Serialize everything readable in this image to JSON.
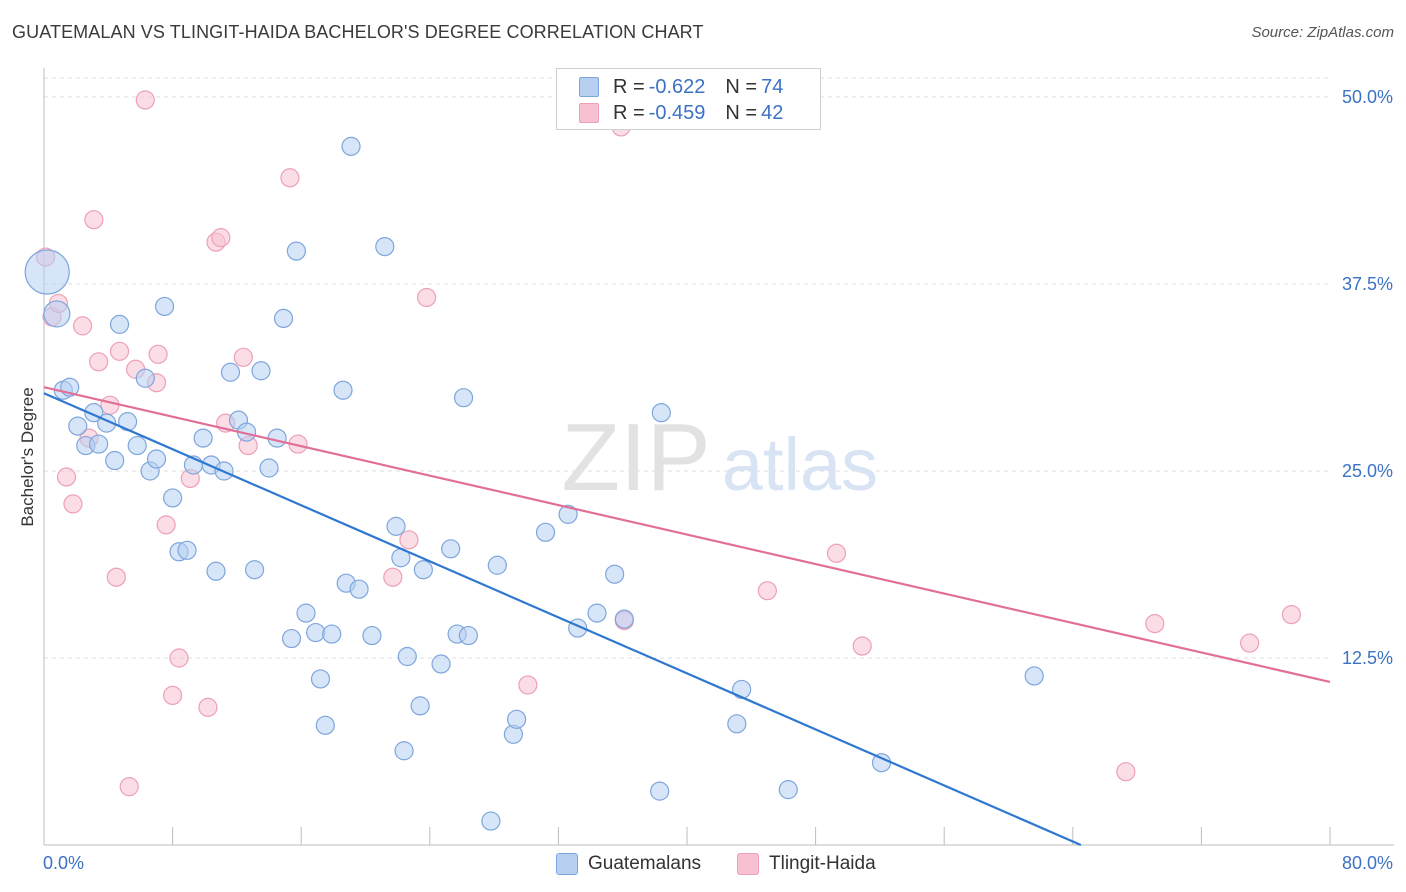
{
  "header": {
    "title": "GUATEMALAN VS TLINGIT-HAIDA BACHELOR'S DEGREE CORRELATION CHART",
    "source": "Source: ZipAtlas.com"
  },
  "watermark": {
    "zip": "ZIP",
    "atlas": "atlas"
  },
  "legend": {
    "guatemalans": {
      "r_label": "R = ",
      "r_value": "-0.622",
      "n_label": "N = ",
      "n_value": "74"
    },
    "tlingit": {
      "r_label": "R = ",
      "r_value": "-0.459",
      "n_label": "N = ",
      "n_value": "42"
    }
  },
  "bottom_legend": {
    "guatemalans": "Guatemalans",
    "tlingit": "Tlingit-Haida"
  },
  "colors": {
    "blue_fill": "#b7d0f2",
    "blue_stroke": "#7ea6dc",
    "blue_line": "#2f78d0",
    "pink_fill": "#f7c1d1",
    "pink_stroke": "#eda0b8",
    "pink_line": "#e07098",
    "tick_label": "#3b72c4"
  },
  "chart_data": {
    "type": "scatter",
    "title": "GUATEMALAN VS TLINGIT-HAIDA BACHELOR'S DEGREE CORRELATION CHART",
    "xlabel": "",
    "ylabel": "Bachelor's Degree",
    "xlim": [
      0,
      80
    ],
    "ylim": [
      0,
      50
    ],
    "x_tick_labels": [
      {
        "value": 0,
        "label": "0.0%"
      },
      {
        "value": 80,
        "label": "80.0%"
      }
    ],
    "y_tick_labels": [
      {
        "value": 12.5,
        "label": "12.5%"
      },
      {
        "value": 25,
        "label": "25.0%"
      },
      {
        "value": 37.5,
        "label": "37.5%"
      },
      {
        "value": 50,
        "label": "50.0%"
      }
    ],
    "grid": true,
    "legend_position": "top-center",
    "series": [
      {
        "name": "Guatemalans",
        "r": -0.622,
        "n": 74,
        "trend": {
          "x": [
            0,
            64.5
          ],
          "y": [
            30.2,
            0
          ]
        },
        "points": [
          {
            "x": 0.2,
            "y": 38.3,
            "size": "large"
          },
          {
            "x": 0.8,
            "y": 35.5,
            "size": "medium"
          },
          {
            "x": 1.2,
            "y": 30.4
          },
          {
            "x": 1.6,
            "y": 30.6
          },
          {
            "x": 2.1,
            "y": 28.0
          },
          {
            "x": 2.6,
            "y": 26.7
          },
          {
            "x": 3.1,
            "y": 28.9
          },
          {
            "x": 3.4,
            "y": 26.8
          },
          {
            "x": 3.9,
            "y": 28.2
          },
          {
            "x": 4.4,
            "y": 25.7
          },
          {
            "x": 4.7,
            "y": 34.8
          },
          {
            "x": 5.2,
            "y": 28.3
          },
          {
            "x": 5.8,
            "y": 26.7
          },
          {
            "x": 6.3,
            "y": 31.2
          },
          {
            "x": 6.6,
            "y": 25.0
          },
          {
            "x": 7.0,
            "y": 25.8
          },
          {
            "x": 7.5,
            "y": 36.0
          },
          {
            "x": 8.0,
            "y": 23.2
          },
          {
            "x": 8.4,
            "y": 19.6
          },
          {
            "x": 8.9,
            "y": 19.7
          },
          {
            "x": 9.3,
            "y": 25.4
          },
          {
            "x": 9.9,
            "y": 27.2
          },
          {
            "x": 10.4,
            "y": 25.4
          },
          {
            "x": 10.7,
            "y": 18.3
          },
          {
            "x": 11.2,
            "y": 25.0
          },
          {
            "x": 11.6,
            "y": 31.6
          },
          {
            "x": 12.1,
            "y": 28.4
          },
          {
            "x": 12.6,
            "y": 27.6
          },
          {
            "x": 13.1,
            "y": 18.4
          },
          {
            "x": 13.5,
            "y": 31.7
          },
          {
            "x": 14.0,
            "y": 25.2
          },
          {
            "x": 14.5,
            "y": 27.2
          },
          {
            "x": 14.9,
            "y": 35.2
          },
          {
            "x": 15.4,
            "y": 13.8
          },
          {
            "x": 15.7,
            "y": 39.7
          },
          {
            "x": 16.3,
            "y": 15.5
          },
          {
            "x": 16.9,
            "y": 14.2
          },
          {
            "x": 17.2,
            "y": 11.1
          },
          {
            "x": 17.5,
            "y": 8.0
          },
          {
            "x": 17.9,
            "y": 14.1
          },
          {
            "x": 18.6,
            "y": 30.4
          },
          {
            "x": 18.8,
            "y": 17.5
          },
          {
            "x": 19.1,
            "y": 46.7
          },
          {
            "x": 19.6,
            "y": 17.1
          },
          {
            "x": 20.4,
            "y": 14.0
          },
          {
            "x": 21.2,
            "y": 40.0
          },
          {
            "x": 21.9,
            "y": 21.3
          },
          {
            "x": 22.2,
            "y": 19.2
          },
          {
            "x": 22.4,
            "y": 6.3
          },
          {
            "x": 22.6,
            "y": 12.6
          },
          {
            "x": 23.4,
            "y": 9.3
          },
          {
            "x": 23.6,
            "y": 18.4
          },
          {
            "x": 24.7,
            "y": 12.1
          },
          {
            "x": 25.3,
            "y": 19.8
          },
          {
            "x": 25.7,
            "y": 14.1
          },
          {
            "x": 26.1,
            "y": 29.9
          },
          {
            "x": 26.4,
            "y": 14.0
          },
          {
            "x": 27.8,
            "y": 1.6
          },
          {
            "x": 28.2,
            "y": 18.7
          },
          {
            "x": 29.2,
            "y": 7.4
          },
          {
            "x": 29.4,
            "y": 8.4
          },
          {
            "x": 31.2,
            "y": 20.9
          },
          {
            "x": 32.6,
            "y": 22.1
          },
          {
            "x": 33.2,
            "y": 14.5
          },
          {
            "x": 34.4,
            "y": 15.5
          },
          {
            "x": 35.5,
            "y": 18.1
          },
          {
            "x": 36.1,
            "y": 15.1
          },
          {
            "x": 38.3,
            "y": 3.6
          },
          {
            "x": 38.4,
            "y": 28.9
          },
          {
            "x": 43.1,
            "y": 8.1
          },
          {
            "x": 43.4,
            "y": 10.4
          },
          {
            "x": 46.3,
            "y": 3.7
          },
          {
            "x": 52.1,
            "y": 5.5
          },
          {
            "x": 61.6,
            "y": 11.3
          }
        ]
      },
      {
        "name": "Tlingit-Haida",
        "r": -0.459,
        "n": 42,
        "trend": {
          "x": [
            0,
            80
          ],
          "y": [
            30.6,
            10.9
          ]
        },
        "points": [
          {
            "x": 0.1,
            "y": 39.3
          },
          {
            "x": 0.5,
            "y": 35.3
          },
          {
            "x": 0.9,
            "y": 36.2
          },
          {
            "x": 1.4,
            "y": 24.6
          },
          {
            "x": 1.8,
            "y": 22.8
          },
          {
            "x": 2.4,
            "y": 34.7
          },
          {
            "x": 2.8,
            "y": 27.2
          },
          {
            "x": 3.1,
            "y": 41.8
          },
          {
            "x": 3.4,
            "y": 32.3
          },
          {
            "x": 4.1,
            "y": 29.4
          },
          {
            "x": 4.5,
            "y": 17.9
          },
          {
            "x": 4.7,
            "y": 33.0
          },
          {
            "x": 5.3,
            "y": 3.9
          },
          {
            "x": 5.7,
            "y": 31.8
          },
          {
            "x": 6.3,
            "y": 49.8
          },
          {
            "x": 7.1,
            "y": 32.8
          },
          {
            "x": 7.0,
            "y": 30.9
          },
          {
            "x": 7.6,
            "y": 21.4
          },
          {
            "x": 8.0,
            "y": 10.0
          },
          {
            "x": 8.4,
            "y": 12.5
          },
          {
            "x": 9.1,
            "y": 24.5
          },
          {
            "x": 10.2,
            "y": 9.2
          },
          {
            "x": 10.7,
            "y": 40.3
          },
          {
            "x": 11.0,
            "y": 40.6
          },
          {
            "x": 11.3,
            "y": 28.2
          },
          {
            "x": 12.4,
            "y": 32.6
          },
          {
            "x": 12.7,
            "y": 26.7
          },
          {
            "x": 15.3,
            "y": 44.6
          },
          {
            "x": 15.8,
            "y": 26.8
          },
          {
            "x": 21.7,
            "y": 17.9
          },
          {
            "x": 22.7,
            "y": 20.4
          },
          {
            "x": 23.8,
            "y": 36.6
          },
          {
            "x": 30.1,
            "y": 10.7
          },
          {
            "x": 35.9,
            "y": 48.0
          },
          {
            "x": 36.1,
            "y": 15.0
          },
          {
            "x": 45.0,
            "y": 17.0
          },
          {
            "x": 49.3,
            "y": 19.5
          },
          {
            "x": 50.9,
            "y": 13.3
          },
          {
            "x": 67.3,
            "y": 4.9
          },
          {
            "x": 69.1,
            "y": 14.8
          },
          {
            "x": 75.0,
            "y": 13.5
          },
          {
            "x": 77.6,
            "y": 15.4
          }
        ]
      }
    ]
  }
}
